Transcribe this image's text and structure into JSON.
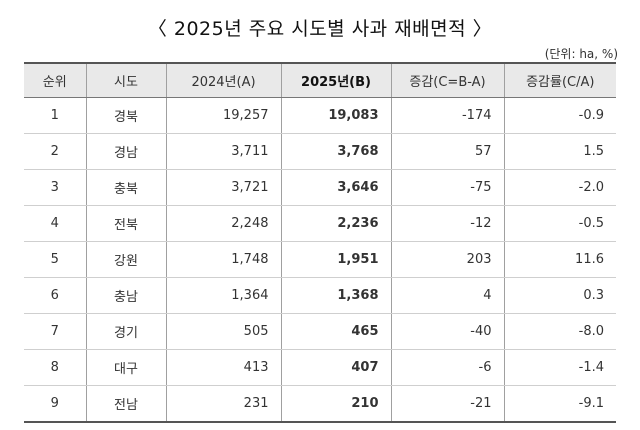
{
  "title": "〈 2025년 주요 시도별 사과 재배면적 〉",
  "unit": "(단위: ha, %)",
  "table": {
    "headers": [
      "순위",
      "시도",
      "2024년(A)",
      "2025년(B)",
      "증감(C=B-A)",
      "증감률(C/A)"
    ],
    "rows": [
      [
        "1",
        "경북",
        "19,257",
        "19,083",
        "-174",
        "-0.9"
      ],
      [
        "2",
        "경남",
        "3,711",
        "3,768",
        "57",
        "1.5"
      ],
      [
        "3",
        "충북",
        "3,721",
        "3,646",
        "-75",
        "-2.0"
      ],
      [
        "4",
        "전북",
        "2,248",
        "2,236",
        "-12",
        "-0.5"
      ],
      [
        "5",
        "강원",
        "1,748",
        "1,951",
        "203",
        "11.6"
      ],
      [
        "6",
        "충남",
        "1,364",
        "1,368",
        "4",
        "0.3"
      ],
      [
        "7",
        "경기",
        "505",
        "465",
        "-40",
        "-8.0"
      ],
      [
        "8",
        "대구",
        "413",
        "407",
        "-6",
        "-1.4"
      ],
      [
        "9",
        "전남",
        "231",
        "210",
        "-21",
        "-9.1"
      ]
    ]
  }
}
